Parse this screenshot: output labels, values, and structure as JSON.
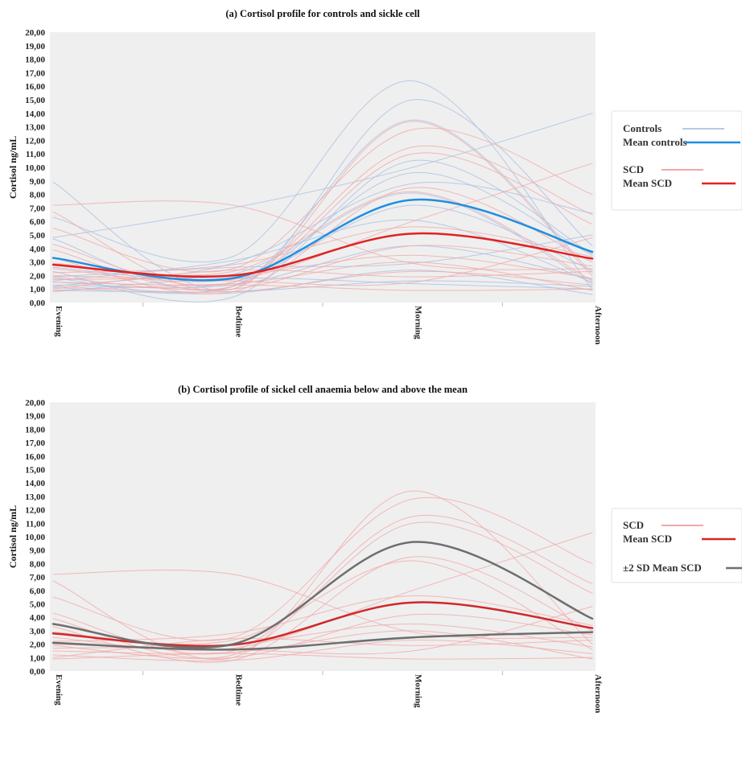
{
  "chart_data": [
    {
      "type": "line",
      "title": "(a) Cortisol profile for controls and sickle cell",
      "ylabel": "Cortisol ng/mL",
      "xlabel": "",
      "categories": [
        "Evening",
        "Bedtime",
        "Morning",
        "Afternoon"
      ],
      "ylim": [
        0,
        20
      ],
      "yticks": [
        "0,00",
        "1,00",
        "2,00",
        "3,00",
        "4,00",
        "5,00",
        "6,00",
        "7,00",
        "8,00",
        "9,00",
        "10,00",
        "11,00",
        "12,00",
        "13,00",
        "14,00",
        "15,00",
        "16,00",
        "17,00",
        "18,00",
        "19,00",
        "20,00"
      ],
      "grid": true,
      "legend": "right",
      "legend_entries": [
        {
          "label": "Controls",
          "color": "#b8c9e3"
        },
        {
          "label": "Mean controls",
          "color": "#1f8ee0"
        },
        {
          "label": "SCD",
          "color": "#f0a8a8"
        },
        {
          "label": "Mean SCD",
          "color": "#e02222"
        }
      ],
      "series_groups": [
        {
          "group": "Controls",
          "color": "#aec3e2",
          "width": 1,
          "opacity": 0.85,
          "lines": [
            [
              8.9,
              1.0,
              15.0,
              4.2
            ],
            [
              6.3,
              3.4,
              16.4,
              1.0
            ],
            [
              4.8,
              7.0,
              10.0,
              14.0
            ],
            [
              4.7,
              1.2,
              13.5,
              2.2
            ],
            [
              2.3,
              0.4,
              10.5,
              3.6
            ],
            [
              1.2,
              2.9,
              8.8,
              6.6
            ],
            [
              1.5,
              1.5,
              7.2,
              2.4
            ],
            [
              1.9,
              2.6,
              2.9,
              5.0
            ],
            [
              1.3,
              1.3,
              4.2,
              1.7
            ],
            [
              0.9,
              0.8,
              1.6,
              1.2
            ],
            [
              1.8,
              1.2,
              9.6,
              3.5
            ],
            [
              2.6,
              2.1,
              8.1,
              1.4
            ],
            [
              1.1,
              0.7,
              2.4,
              0.6
            ],
            [
              1.6,
              3.1,
              6.1,
              1.5
            ],
            [
              0.8,
              1.8,
              1.4,
              1.0
            ]
          ]
        },
        {
          "group": "SCD",
          "color": "#f2a9a9",
          "width": 1,
          "opacity": 0.8,
          "lines": [
            [
              7.2,
              7.2,
              2.9,
              2.5
            ],
            [
              6.7,
              1.0,
              13.4,
              2.0
            ],
            [
              5.5,
              2.5,
              12.8,
              8.0
            ],
            [
              4.3,
              1.5,
              11.5,
              6.5
            ],
            [
              3.9,
              1.2,
              11.0,
              5.8
            ],
            [
              3.3,
              0.8,
              8.5,
              3.0
            ],
            [
              2.9,
              2.3,
              8.2,
              1.6
            ],
            [
              2.5,
              1.7,
              6.0,
              10.3
            ],
            [
              2.2,
              2.8,
              5.6,
              3.4
            ],
            [
              1.9,
              1.0,
              4.2,
              2.7
            ],
            [
              1.7,
              2.0,
              3.5,
              1.8
            ],
            [
              1.5,
              1.4,
              3.0,
              0.9
            ],
            [
              1.2,
              0.8,
              2.3,
              1.3
            ],
            [
              1.0,
              2.4,
              1.9,
              2.3
            ],
            [
              0.9,
              1.3,
              0.9,
              1.0
            ],
            [
              2.0,
              1.6,
              1.5,
              4.8
            ]
          ]
        },
        {
          "group": "Mean controls",
          "color": "#1f8ee0",
          "width": 2.5,
          "opacity": 1,
          "lines": [
            [
              3.3,
              1.8,
              7.6,
              3.75
            ]
          ]
        },
        {
          "group": "Mean SCD",
          "color": "#e02222",
          "width": 2.5,
          "opacity": 1,
          "lines": [
            [
              2.8,
              2.0,
              5.1,
              3.25
            ]
          ]
        }
      ]
    },
    {
      "type": "line",
      "title": "(b) Cortisol profile of sickel cell anaemia below and above the mean",
      "ylabel": "Cortisol ng/mL",
      "xlabel": "",
      "categories": [
        "Evening",
        "Bedtime",
        "Morning",
        "Afternoon"
      ],
      "ylim": [
        0,
        20
      ],
      "yticks": [
        "0,00",
        "1,00",
        "2,00",
        "3,00",
        "4,00",
        "5,00",
        "6,00",
        "7,00",
        "8,00",
        "9,00",
        "10,00",
        "11,00",
        "12,00",
        "13,00",
        "14,00",
        "15,00",
        "16,00",
        "17,00",
        "18,00",
        "19,00",
        "20,00"
      ],
      "grid": true,
      "legend": "right",
      "legend_entries": [
        {
          "label": "SCD",
          "color": "#f0a8a8"
        },
        {
          "label": "Mean SCD",
          "color": "#d02828"
        },
        {
          "label": "±2 SD Mean SCD",
          "color": "#6e6e6e"
        }
      ],
      "series_groups": [
        {
          "group": "SCD",
          "color": "#f2a9a9",
          "width": 1,
          "opacity": 0.8,
          "lines": [
            [
              7.2,
              7.2,
              2.9,
              2.5
            ],
            [
              6.7,
              1.0,
              13.4,
              2.0
            ],
            [
              5.5,
              2.5,
              12.8,
              8.0
            ],
            [
              4.3,
              1.5,
              11.5,
              6.5
            ],
            [
              3.9,
              1.2,
              11.0,
              5.8
            ],
            [
              3.3,
              0.8,
              8.5,
              3.0
            ],
            [
              2.9,
              2.3,
              8.2,
              1.6
            ],
            [
              2.5,
              1.7,
              6.0,
              10.3
            ],
            [
              2.2,
              2.8,
              5.6,
              3.4
            ],
            [
              1.9,
              1.0,
              4.2,
              2.7
            ],
            [
              1.7,
              2.0,
              3.5,
              1.8
            ],
            [
              1.5,
              1.4,
              3.0,
              0.9
            ],
            [
              1.2,
              0.8,
              2.3,
              1.3
            ],
            [
              1.0,
              2.4,
              1.9,
              2.3
            ],
            [
              0.9,
              1.3,
              0.9,
              1.0
            ],
            [
              2.0,
              1.6,
              1.5,
              4.8
            ]
          ]
        },
        {
          "group": "Mean SCD",
          "color": "#d02828",
          "width": 2.5,
          "opacity": 1,
          "lines": [
            [
              2.8,
              1.95,
              5.1,
              3.2
            ]
          ]
        },
        {
          "group": "±2 SD Mean SCD",
          "color": "#6e6e6e",
          "width": 2.5,
          "opacity": 1,
          "lines": [
            [
              3.5,
              2.0,
              9.6,
              3.9
            ],
            [
              2.1,
              1.6,
              2.5,
              2.9
            ]
          ]
        }
      ]
    }
  ]
}
